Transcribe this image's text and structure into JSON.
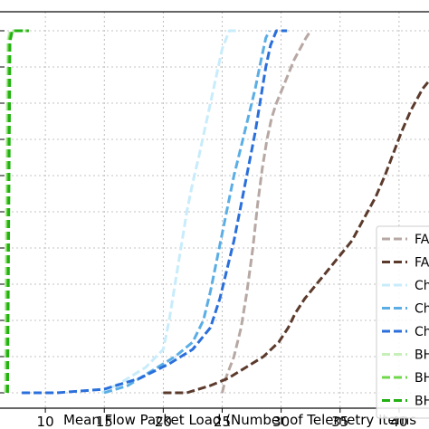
{
  "chart_data": {
    "type": "line",
    "title": "",
    "xlabel": "Mean Flow Packet Load (Number of Telemetry Items",
    "ylabel": "",
    "xlim": [
      6,
      43
    ],
    "ylim": [
      0,
      1
    ],
    "x_ticks": [
      10,
      15,
      20,
      25,
      30,
      35,
      40
    ],
    "grid": true,
    "legend_position": "lower-right",
    "series": [
      {
        "name": "FA",
        "color": "#b7a8a3",
        "x": [
          25.0,
          25.3,
          26.0,
          26.6,
          27.1,
          27.6,
          28.0,
          28.4,
          28.8,
          29.2,
          29.6,
          30.1,
          30.6,
          31.1,
          31.6,
          32.1,
          32.5
        ],
        "y": [
          0.0,
          0.04,
          0.1,
          0.18,
          0.28,
          0.4,
          0.52,
          0.62,
          0.7,
          0.76,
          0.8,
          0.84,
          0.88,
          0.92,
          0.95,
          0.98,
          1.0
        ]
      },
      {
        "name": "FA",
        "color": "#5b3a2c",
        "x": [
          20.0,
          22.0,
          24.0,
          25.5,
          27.0,
          28.5,
          29.8,
          30.6,
          31.2,
          32.0,
          33.0,
          34.0,
          35.0,
          36.0,
          37.0,
          38.0,
          38.8,
          39.5,
          40.2,
          41.0,
          42.0,
          43.0
        ],
        "y": [
          0.0,
          0.0,
          0.02,
          0.04,
          0.07,
          0.1,
          0.14,
          0.18,
          0.22,
          0.26,
          0.3,
          0.34,
          0.38,
          0.42,
          0.48,
          0.54,
          0.6,
          0.66,
          0.72,
          0.78,
          0.84,
          0.88
        ]
      },
      {
        "name": "Ch",
        "color": "#c8ecfb",
        "x": [
          14.8,
          16.5,
          18.5,
          20.0,
          20.5,
          21.0,
          21.5,
          22.0,
          22.5,
          23.0,
          23.4,
          23.8,
          24.2,
          24.6,
          25.0,
          25.6,
          26.5
        ],
        "y": [
          0.0,
          0.03,
          0.07,
          0.12,
          0.2,
          0.3,
          0.4,
          0.5,
          0.58,
          0.65,
          0.71,
          0.77,
          0.83,
          0.89,
          0.95,
          1.0,
          1.0
        ]
      },
      {
        "name": "Ch",
        "color": "#5aaee5",
        "x": [
          15.0,
          17.0,
          19.0,
          21.0,
          22.5,
          23.4,
          24.0,
          24.5,
          25.0,
          25.5,
          26.0,
          26.6,
          27.2,
          27.8,
          28.3,
          28.7,
          29.0
        ],
        "y": [
          0.0,
          0.02,
          0.06,
          0.1,
          0.14,
          0.2,
          0.28,
          0.36,
          0.44,
          0.52,
          0.6,
          0.68,
          0.76,
          0.84,
          0.92,
          0.98,
          1.0
        ]
      },
      {
        "name": "Ch",
        "color": "#2a6fdb",
        "x": [
          8.0,
          11.0,
          15.0,
          18.0,
          20.5,
          22.5,
          24.0,
          24.8,
          25.4,
          26.0,
          26.6,
          27.2,
          27.8,
          28.3,
          28.7,
          29.1,
          29.6,
          30.5
        ],
        "y": [
          0.0,
          0.0,
          0.01,
          0.04,
          0.08,
          0.12,
          0.18,
          0.26,
          0.34,
          0.42,
          0.52,
          0.62,
          0.72,
          0.82,
          0.9,
          0.96,
          1.0,
          1.0
        ]
      },
      {
        "name": "BH",
        "color": "#c6f0b8",
        "x": [
          6.6,
          6.7,
          6.8,
          7.0,
          8.3
        ],
        "y": [
          0.0,
          0.5,
          0.97,
          1.0,
          1.0
        ]
      },
      {
        "name": "BH",
        "color": "#6fd84a",
        "x": [
          6.7,
          6.8,
          6.9,
          7.1,
          8.4
        ],
        "y": [
          0.0,
          0.5,
          0.97,
          1.0,
          1.0
        ]
      },
      {
        "name": "BH",
        "color": "#22b012",
        "x": [
          6.8,
          6.9,
          7.0,
          7.2,
          8.6
        ],
        "y": [
          0.0,
          0.5,
          0.97,
          1.0,
          1.0
        ]
      }
    ]
  }
}
